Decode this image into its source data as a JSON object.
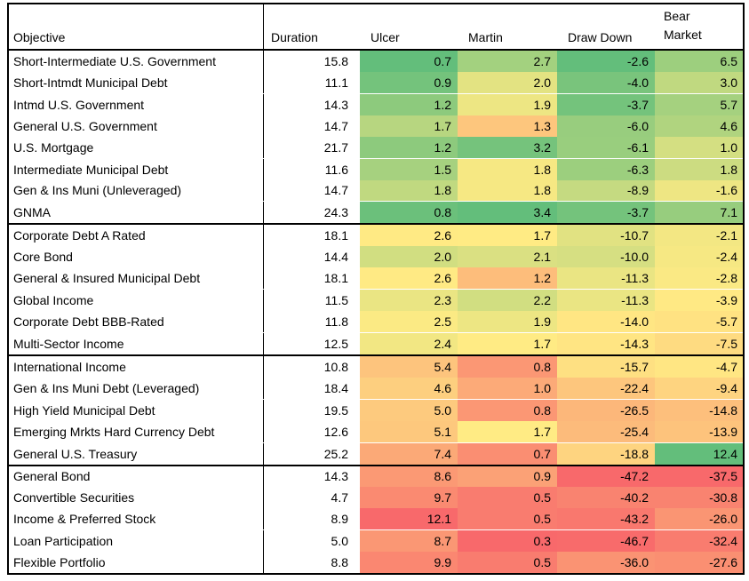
{
  "chart_data": {
    "type": "table",
    "subtype": "heatmap-table",
    "columns": [
      {
        "key": "objective",
        "label": "Objective",
        "align": "left"
      },
      {
        "key": "duration",
        "label": "Duration",
        "align": "right"
      },
      {
        "key": "ulcer",
        "label": "Ulcer",
        "align": "right",
        "scale": "low_good"
      },
      {
        "key": "martin",
        "label": "Martin",
        "align": "right",
        "scale": "high_good"
      },
      {
        "key": "drawdown",
        "label": "Draw Down",
        "align": "right",
        "scale": "high_good"
      },
      {
        "key": "bear",
        "label": "Bear Market",
        "label_lines": [
          "Bear",
          "Market"
        ],
        "align": "right",
        "scale": "high_good"
      }
    ],
    "heatmap": {
      "red": "#F8696B",
      "yellow": "#FFEB84",
      "green": "#63BE7B",
      "midpoint": "median",
      "scope": "per-column"
    },
    "groups": [
      {
        "rows": [
          {
            "objective": "Short-Intermediate U.S. Government",
            "duration": "15.8",
            "ulcer": "0.7",
            "martin": "2.7",
            "drawdown": "-2.6",
            "bear": "6.5",
            "rule_below": false
          },
          {
            "objective": "Short-Intmdt Municipal Debt",
            "duration": "11.1",
            "ulcer": "0.9",
            "martin": "2.0",
            "drawdown": "-4.0",
            "bear": "3.0",
            "rule_below": true
          },
          {
            "objective": "Intmd U.S. Government",
            "duration": "14.3",
            "ulcer": "1.2",
            "martin": "1.9",
            "drawdown": "-3.7",
            "bear": "5.7",
            "rule_below": false
          },
          {
            "objective": "General U.S. Government",
            "duration": "14.7",
            "ulcer": "1.7",
            "martin": "1.3",
            "drawdown": "-6.0",
            "bear": "4.6",
            "rule_below": false
          },
          {
            "objective": "U.S. Mortgage",
            "duration": "21.7",
            "ulcer": "1.2",
            "martin": "3.2",
            "drawdown": "-6.1",
            "bear": "1.0",
            "rule_below": true
          },
          {
            "objective": "Intermediate Municipal Debt",
            "duration": "11.6",
            "ulcer": "1.5",
            "martin": "1.8",
            "drawdown": "-6.3",
            "bear": "1.8",
            "rule_below": false
          },
          {
            "objective": "Gen & Ins Muni (Unleveraged)",
            "duration": "14.7",
            "ulcer": "1.8",
            "martin": "1.8",
            "drawdown": "-8.9",
            "bear": "-1.6",
            "rule_below": true
          },
          {
            "objective": "GNMA",
            "duration": "24.3",
            "ulcer": "0.8",
            "martin": "3.4",
            "drawdown": "-3.7",
            "bear": "7.1",
            "rule_below": false
          }
        ]
      },
      {
        "rows": [
          {
            "objective": "Corporate Debt A Rated",
            "duration": "18.1",
            "ulcer": "2.6",
            "martin": "1.7",
            "drawdown": "-10.7",
            "bear": "-2.1",
            "rule_below": false
          },
          {
            "objective": "Core Bond",
            "duration": "14.4",
            "ulcer": "2.0",
            "martin": "2.1",
            "drawdown": "-10.0",
            "bear": "-2.4",
            "rule_below": false
          },
          {
            "objective": "General & Insured Municipal Debt",
            "duration": "18.1",
            "ulcer": "2.6",
            "martin": "1.2",
            "drawdown": "-11.3",
            "bear": "-2.8",
            "rule_below": true
          },
          {
            "objective": "Global Income",
            "duration": "11.5",
            "ulcer": "2.3",
            "martin": "2.2",
            "drawdown": "-11.3",
            "bear": "-3.9",
            "rule_below": false
          },
          {
            "objective": "Corporate Debt BBB-Rated",
            "duration": "11.8",
            "ulcer": "2.5",
            "martin": "1.9",
            "drawdown": "-14.0",
            "bear": "-5.7",
            "rule_below": true
          },
          {
            "objective": "Multi-Sector Income",
            "duration": "12.5",
            "ulcer": "2.4",
            "martin": "1.7",
            "drawdown": "-14.3",
            "bear": "-7.5",
            "rule_below": false
          }
        ]
      },
      {
        "rows": [
          {
            "objective": "International Income",
            "duration": "10.8",
            "ulcer": "5.4",
            "martin": "0.8",
            "drawdown": "-15.7",
            "bear": "-4.7",
            "rule_below": false
          },
          {
            "objective": "Gen & Ins Muni Debt (Leveraged)",
            "duration": "18.4",
            "ulcer": "4.6",
            "martin": "1.0",
            "drawdown": "-22.4",
            "bear": "-9.4",
            "rule_below": true
          },
          {
            "objective": "High Yield Municipal Debt",
            "duration": "19.5",
            "ulcer": "5.0",
            "martin": "0.8",
            "drawdown": "-26.5",
            "bear": "-14.8",
            "rule_below": false
          },
          {
            "objective": "Emerging Mrkts Hard Currency Debt",
            "duration": "12.6",
            "ulcer": "5.1",
            "martin": "1.7",
            "drawdown": "-25.4",
            "bear": "-13.9",
            "rule_below": true
          },
          {
            "objective": "General U.S. Treasury",
            "duration": "25.2",
            "ulcer": "7.4",
            "martin": "0.7",
            "drawdown": "-18.8",
            "bear": "12.4",
            "rule_below": false
          }
        ]
      },
      {
        "rows": [
          {
            "objective": "General Bond",
            "duration": "14.3",
            "ulcer": "8.6",
            "martin": "0.9",
            "drawdown": "-47.2",
            "bear": "-37.5",
            "rule_below": false
          },
          {
            "objective": "Convertible Securities",
            "duration": "4.7",
            "ulcer": "9.7",
            "martin": "0.5",
            "drawdown": "-40.2",
            "bear": "-30.8",
            "rule_below": false
          },
          {
            "objective": "Income & Preferred Stock",
            "duration": "8.9",
            "ulcer": "12.1",
            "martin": "0.5",
            "drawdown": "-43.2",
            "bear": "-26.0",
            "rule_below": true
          },
          {
            "objective": "Loan Participation",
            "duration": "5.0",
            "ulcer": "8.7",
            "martin": "0.3",
            "drawdown": "-46.7",
            "bear": "-32.4",
            "rule_below": false
          },
          {
            "objective": "Flexible Portfolio",
            "duration": "8.8",
            "ulcer": "9.9",
            "martin": "0.5",
            "drawdown": "-36.0",
            "bear": "-27.6",
            "rule_below": false
          }
        ]
      }
    ]
  }
}
